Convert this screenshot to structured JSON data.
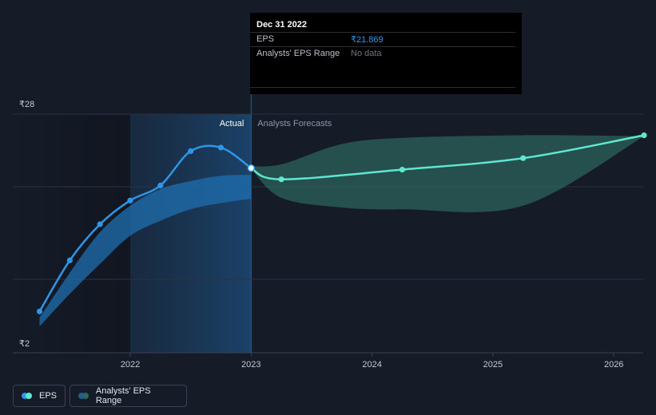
{
  "tooltip": {
    "date": "Dec 31 2022",
    "eps_label": "EPS",
    "eps_value": "₹21.869",
    "range_label": "Analysts' EPS Range",
    "range_value": "No data"
  },
  "legend": {
    "eps_label": "EPS",
    "range_label": "Analysts' EPS Range"
  },
  "colors": {
    "background": "#151b27",
    "eps_actual": "#2e96e6",
    "eps_forecast": "#5ee8cf",
    "range_actual": "#1f6fb0",
    "range_forecast": "#2e6660",
    "grid": "#2c3340",
    "tick_text": "#c4c9d2"
  },
  "chart_data": {
    "type": "line",
    "ylim": [
      2,
      28
    ],
    "yticks": [
      "₹28",
      "₹2"
    ],
    "xticks": [
      "2022",
      "2023",
      "2024",
      "2025",
      "2026"
    ],
    "divider_labels": {
      "actual": "Actual",
      "forecast": "Analysts Forecasts"
    },
    "series": [
      {
        "name": "EPS",
        "kind": "actual",
        "x": [
          2021.25,
          2021.5,
          2021.75,
          2022.0,
          2022.25,
          2022.5,
          2022.75,
          2023.0
        ],
        "y": [
          5.6,
          11.4,
          15.5,
          18.2,
          19.9,
          23.8,
          24.2,
          21.869
        ]
      },
      {
        "name": "EPS",
        "kind": "forecast",
        "x": [
          2023.0,
          2023.25,
          2024.25,
          2025.25,
          2026.25
        ],
        "y": [
          21.869,
          20.6,
          21.7,
          23.0,
          25.6
        ]
      }
    ],
    "ranges": [
      {
        "kind": "actual",
        "x": [
          2021.25,
          2021.5,
          2021.75,
          2022.0,
          2022.25,
          2022.5,
          2022.75,
          2023.0
        ],
        "low": [
          3.9,
          7.6,
          11.0,
          14.2,
          15.9,
          17.2,
          17.9,
          18.4
        ],
        "high": [
          4.9,
          10.0,
          14.6,
          17.6,
          19.5,
          20.4,
          21.0,
          21.1
        ]
      },
      {
        "kind": "forecast",
        "x": [
          2023.0,
          2023.25,
          2023.75,
          2024.25,
          2025.25,
          2026.25
        ],
        "low": [
          21.8,
          18.5,
          17.4,
          17.2,
          17.6,
          25.5
        ],
        "high": [
          22.1,
          22.3,
          24.6,
          25.3,
          25.6,
          25.5
        ]
      }
    ]
  }
}
